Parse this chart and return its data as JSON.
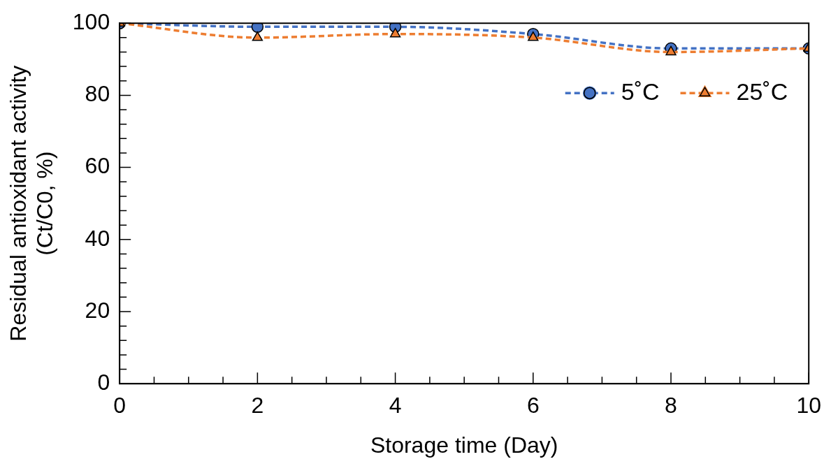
{
  "chart_data": {
    "type": "line",
    "xlabel": "Storage time (Day)",
    "ylabel": "Residual antioxidant activity\n(Ct/C0, %)",
    "x": [
      0,
      2,
      4,
      6,
      8,
      10
    ],
    "series": [
      {
        "name": "5˚C",
        "color": "#4472c4",
        "marker": "circle",
        "values": [
          100,
          99,
          99,
          97,
          93,
          93
        ]
      },
      {
        "name": "25˚C",
        "color": "#ed7d31",
        "marker": "triangle",
        "values": [
          100,
          96,
          97,
          96,
          92,
          93
        ]
      }
    ],
    "xlim": [
      0,
      10
    ],
    "xticks": [
      0,
      2,
      4,
      6,
      8,
      10
    ],
    "ylim": [
      0,
      100
    ],
    "yticks": [
      0,
      20,
      40,
      60,
      80,
      100
    ],
    "grid": false,
    "legend": "top right",
    "line_style": "dashed"
  }
}
